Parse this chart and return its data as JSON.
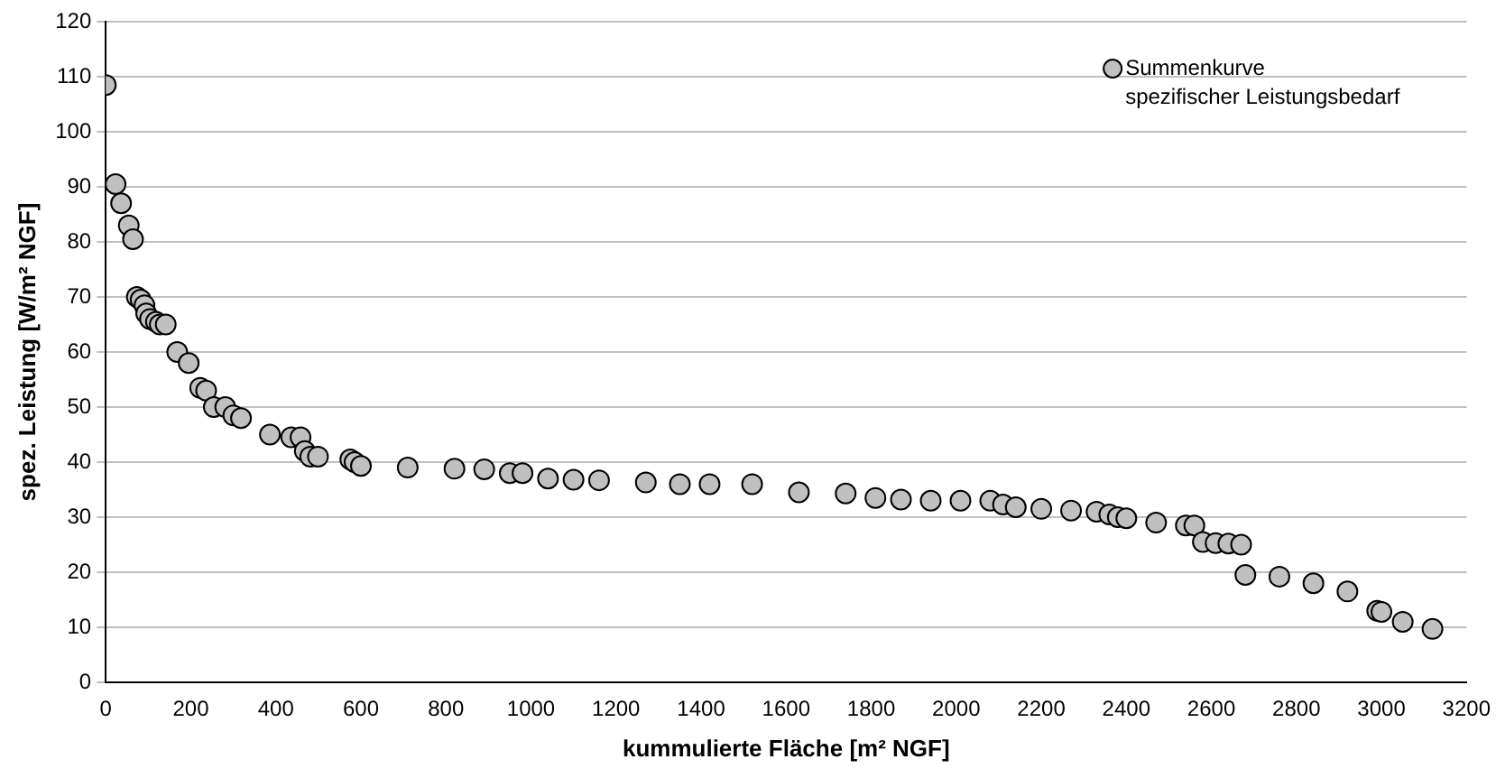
{
  "chart_data": {
    "type": "scatter",
    "xlabel": "kummulierte Fläche [m² NGF]",
    "ylabel": "spez. Leistung [W/m² NGF]",
    "xlim": [
      0,
      3200
    ],
    "xticks": [
      0,
      200,
      400,
      600,
      800,
      1000,
      1200,
      1400,
      1600,
      1800,
      2000,
      2200,
      2400,
      2600,
      2800,
      3000,
      3200
    ],
    "ylim": [
      0,
      120
    ],
    "yticks": [
      0,
      10,
      20,
      30,
      40,
      50,
      60,
      70,
      80,
      90,
      100,
      110,
      120
    ],
    "grid": "y",
    "legend": "top right",
    "marker": "circle",
    "series": [
      {
        "name": "Summenkurve spezifischer Leistungsbedarf",
        "color": "#c0c0c0",
        "x": [
          0,
          23,
          36,
          54,
          64,
          73,
          82,
          91,
          95,
          104,
          118,
          127,
          141,
          168,
          195,
          222,
          236,
          254,
          281,
          300,
          318,
          386,
          436,
          458,
          468,
          481,
          499,
          575,
          585,
          600,
          710,
          820,
          890,
          950,
          980,
          1040,
          1100,
          1160,
          1270,
          1350,
          1420,
          1520,
          1630,
          1740,
          1810,
          1870,
          1940,
          2010,
          2080,
          2110,
          2140,
          2200,
          2270,
          2330,
          2360,
          2380,
          2400,
          2470,
          2540,
          2560,
          2580,
          2610,
          2640,
          2670,
          2680,
          2760,
          2840,
          2920,
          2990,
          3000,
          3050,
          3120
        ],
        "values": [
          108.5,
          90.5,
          87,
          83,
          80.5,
          70,
          69.5,
          68.5,
          67,
          66,
          65.5,
          65,
          65,
          60,
          58,
          53.5,
          53,
          50,
          50,
          48.5,
          48,
          45,
          44.5,
          44.5,
          42,
          41,
          41,
          40.5,
          40,
          39.3,
          39,
          38.8,
          38.7,
          38,
          38,
          37,
          36.8,
          36.7,
          36.3,
          36,
          36,
          36,
          34.5,
          34.3,
          33.5,
          33.2,
          33,
          33,
          33,
          32.3,
          31.8,
          31.5,
          31.2,
          31,
          30.5,
          30,
          29.8,
          29,
          28.5,
          28.5,
          25.5,
          25.3,
          25.2,
          25,
          19.5,
          19.2,
          18,
          16.5,
          13,
          12.8,
          11,
          9.7
        ]
      }
    ]
  }
}
